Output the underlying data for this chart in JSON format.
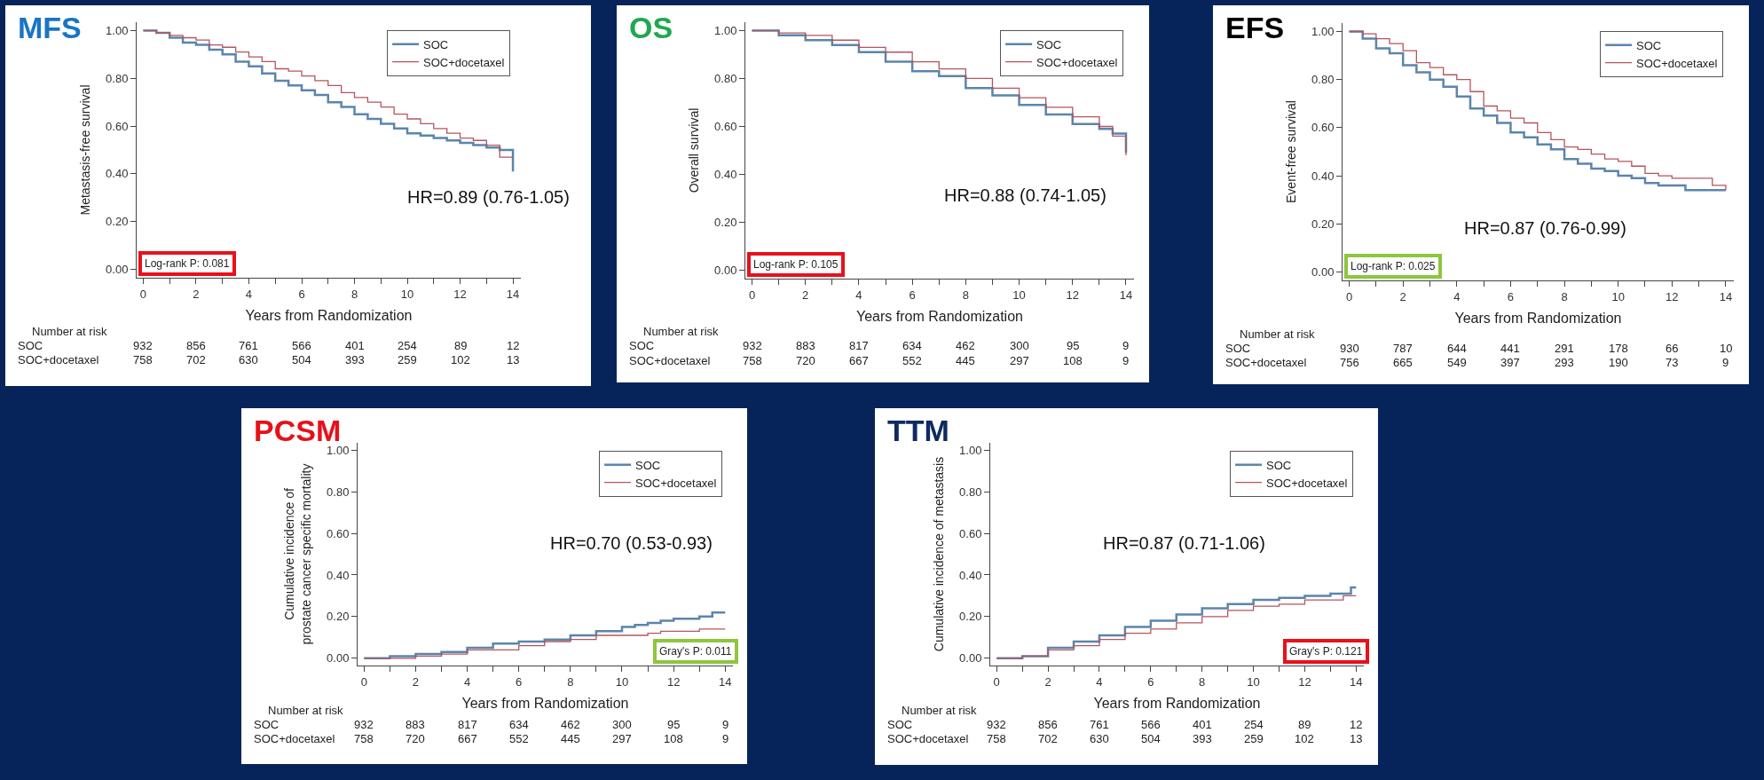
{
  "chart_data": [
    {
      "type": "step",
      "title": "MFS",
      "xlabel": "Years from Randomization",
      "ylabel": "Metastasis-free survival",
      "xlim": [
        -0.25,
        14.3
      ],
      "ylim": [
        -0.035,
        1.035
      ],
      "xticks": [
        0,
        {
          "value": 1,
          "label": null
        },
        2,
        {
          "value": 3,
          "label": null
        },
        4,
        {
          "value": 5,
          "label": null
        },
        6,
        {
          "value": 7,
          "label": null
        },
        8,
        {
          "value": 9,
          "label": null
        },
        10,
        {
          "value": 11,
          "label": null
        },
        12,
        {
          "value": 13,
          "label": null
        },
        14
      ],
      "yticks": [
        {
          "value": 0,
          "label": "0.00"
        },
        {
          "value": 0.2,
          "label": "0.20"
        },
        {
          "value": 0.4,
          "label": "0.40"
        },
        {
          "value": 0.6,
          "label": "0.60"
        },
        {
          "value": 0.8,
          "label": "0.80"
        },
        {
          "value": 1,
          "label": "1.00"
        }
      ],
      "legend": "top right",
      "series": [
        {
          "name": "SOC",
          "color": "#5b85ad",
          "x": [
            0,
            0.5,
            1,
            1.5,
            2,
            2.5,
            3,
            3.5,
            4,
            4.5,
            5,
            5.5,
            6,
            6.5,
            7,
            7.5,
            8,
            8.5,
            9,
            9.5,
            10,
            10.5,
            11,
            11.5,
            12,
            12.5,
            13,
            13.5,
            14
          ],
          "values": [
            1,
            0.99,
            0.97,
            0.95,
            0.94,
            0.92,
            0.9,
            0.87,
            0.85,
            0.82,
            0.79,
            0.77,
            0.75,
            0.73,
            0.7,
            0.68,
            0.65,
            0.63,
            0.61,
            0.59,
            0.57,
            0.56,
            0.55,
            0.54,
            0.53,
            0.52,
            0.51,
            0.5,
            0.41
          ]
        },
        {
          "name": "SOC+docetaxel",
          "color": "#b4555f",
          "x": [
            0,
            0.5,
            1,
            1.5,
            2,
            2.5,
            3,
            3.5,
            4,
            4.5,
            5,
            5.5,
            6,
            6.5,
            7,
            7.5,
            8,
            8.5,
            9,
            9.5,
            10,
            10.5,
            11,
            11.5,
            12,
            12.5,
            13,
            13.5,
            14
          ],
          "values": [
            1,
            0.99,
            0.98,
            0.97,
            0.96,
            0.94,
            0.93,
            0.91,
            0.89,
            0.87,
            0.84,
            0.83,
            0.81,
            0.79,
            0.77,
            0.74,
            0.72,
            0.7,
            0.68,
            0.65,
            0.63,
            0.61,
            0.59,
            0.57,
            0.55,
            0.54,
            0.52,
            0.47,
            0.47
          ]
        }
      ],
      "annotations": [
        "HR=0.89 (0.76-1.05)",
        "Log-rank P: 0.081",
        "Number at risk",
        "SOC",
        "932",
        "856",
        "761",
        "566",
        "401",
        "254",
        "89",
        "12",
        "SOC+docetaxel",
        "758",
        "702",
        "630",
        "504",
        "393",
        "259",
        "102",
        "13"
      ]
    },
    {
      "type": "step",
      "title": "OS",
      "xlabel": "Years from Randomization",
      "ylabel": "Overall survival",
      "xlim": [
        -0.25,
        14.3
      ],
      "ylim": [
        -0.035,
        1.035
      ],
      "xticks": [
        0,
        {
          "value": 1,
          "label": null
        },
        2,
        {
          "value": 3,
          "label": null
        },
        4,
        {
          "value": 5,
          "label": null
        },
        6,
        {
          "value": 7,
          "label": null
        },
        8,
        {
          "value": 9,
          "label": null
        },
        10,
        {
          "value": 11,
          "label": null
        },
        12,
        {
          "value": 13,
          "label": null
        },
        14
      ],
      "yticks": [
        {
          "value": 0,
          "label": "0.00"
        },
        {
          "value": 0.2,
          "label": "0.20"
        },
        {
          "value": 0.4,
          "label": "0.40"
        },
        {
          "value": 0.6,
          "label": "0.60"
        },
        {
          "value": 0.8,
          "label": "0.80"
        },
        {
          "value": 1,
          "label": "1.00"
        }
      ],
      "legend": "top right",
      "series": [
        {
          "name": "SOC",
          "color": "#5b85ad",
          "x": [
            0,
            1,
            2,
            3,
            4,
            5,
            6,
            7,
            8,
            9,
            10,
            11,
            12,
            13,
            13.5,
            14
          ],
          "values": [
            1,
            0.98,
            0.96,
            0.94,
            0.91,
            0.87,
            0.83,
            0.81,
            0.76,
            0.73,
            0.69,
            0.65,
            0.61,
            0.59,
            0.57,
            0.49
          ]
        },
        {
          "name": "SOC+docetaxel",
          "color": "#b4555f",
          "x": [
            0,
            1,
            2,
            3,
            4,
            5,
            6,
            7,
            8,
            9,
            10,
            11,
            12,
            13,
            13.5,
            14
          ],
          "values": [
            1,
            0.99,
            0.98,
            0.96,
            0.93,
            0.91,
            0.87,
            0.84,
            0.8,
            0.76,
            0.72,
            0.68,
            0.64,
            0.6,
            0.56,
            0.48
          ]
        }
      ],
      "annotations": [
        "HR=0.88 (0.74-1.05)",
        "Log-rank P: 0.105",
        "Number at risk",
        "SOC",
        "932",
        "883",
        "817",
        "634",
        "462",
        "300",
        "95",
        "9",
        "SOC+docetaxel",
        "758",
        "720",
        "667",
        "552",
        "445",
        "297",
        "108",
        "9"
      ]
    },
    {
      "type": "step",
      "title": "EFS",
      "xlabel": "Years from Randomization",
      "ylabel": "Event-free survival",
      "xlim": [
        -0.25,
        14.3
      ],
      "ylim": [
        -0.035,
        1.035
      ],
      "xticks": [
        0,
        {
          "value": 1,
          "label": null
        },
        2,
        {
          "value": 3,
          "label": null
        },
        4,
        {
          "value": 5,
          "label": null
        },
        6,
        {
          "value": 7,
          "label": null
        },
        8,
        {
          "value": 9,
          "label": null
        },
        10,
        {
          "value": 11,
          "label": null
        },
        12,
        {
          "value": 13,
          "label": null
        },
        14
      ],
      "yticks": [
        {
          "value": 0,
          "label": "0.00"
        },
        {
          "value": 0.2,
          "label": "0.20"
        },
        {
          "value": 0.4,
          "label": "0.40"
        },
        {
          "value": 0.6,
          "label": "0.60"
        },
        {
          "value": 0.8,
          "label": "0.80"
        },
        {
          "value": 1,
          "label": "1.00"
        }
      ],
      "legend": "top right",
      "series": [
        {
          "name": "SOC",
          "color": "#5b85ad",
          "x": [
            0,
            0.5,
            1,
            1.5,
            2,
            2.5,
            3,
            3.5,
            4,
            4.5,
            5,
            5.5,
            6,
            6.5,
            7,
            7.5,
            8,
            8.5,
            9,
            9.5,
            10,
            10.5,
            11,
            11.5,
            12,
            12.5,
            13,
            13.5,
            14
          ],
          "values": [
            1,
            0.97,
            0.93,
            0.91,
            0.86,
            0.83,
            0.8,
            0.77,
            0.73,
            0.68,
            0.65,
            0.62,
            0.58,
            0.56,
            0.53,
            0.51,
            0.47,
            0.45,
            0.43,
            0.42,
            0.4,
            0.39,
            0.37,
            0.36,
            0.36,
            0.34,
            0.34,
            0.34,
            0.34
          ]
        },
        {
          "name": "SOC+docetaxel",
          "color": "#b4555f",
          "x": [
            0,
            0.5,
            1,
            1.5,
            2,
            2.5,
            3,
            3.5,
            4,
            4.5,
            5,
            5.5,
            6,
            6.5,
            7,
            7.5,
            8,
            8.5,
            9,
            9.5,
            10,
            10.5,
            11,
            11.5,
            12,
            12.5,
            13,
            13.5,
            14
          ],
          "values": [
            1,
            0.99,
            0.97,
            0.95,
            0.92,
            0.87,
            0.85,
            0.82,
            0.8,
            0.75,
            0.69,
            0.67,
            0.64,
            0.62,
            0.58,
            0.55,
            0.52,
            0.51,
            0.49,
            0.47,
            0.46,
            0.44,
            0.41,
            0.4,
            0.39,
            0.39,
            0.39,
            0.36,
            0.34
          ]
        }
      ],
      "annotations": [
        "HR=0.87 (0.76-0.99)",
        "Log-rank P: 0.025",
        "Number at risk",
        "SOC",
        "930",
        "787",
        "644",
        "441",
        "291",
        "178",
        "66",
        "10",
        "SOC+docetaxel",
        "756",
        "665",
        "549",
        "397",
        "293",
        "190",
        "73",
        "9"
      ]
    },
    {
      "type": "step",
      "title": "PCSM",
      "xlabel": "Years from Randomization",
      "ylabel": "Cumulative incidence of\nprostate cancer specific mortality",
      "xlim": [
        -0.25,
        14.3
      ],
      "ylim": [
        -0.035,
        1.035
      ],
      "xticks": [
        0,
        {
          "value": 1,
          "label": null
        },
        2,
        {
          "value": 3,
          "label": null
        },
        4,
        {
          "value": 5,
          "label": null
        },
        6,
        {
          "value": 7,
          "label": null
        },
        8,
        {
          "value": 9,
          "label": null
        },
        10,
        {
          "value": 11,
          "label": null
        },
        12,
        {
          "value": 13,
          "label": null
        },
        14
      ],
      "yticks": [
        {
          "value": 0,
          "label": "0.00"
        },
        {
          "value": 0.2,
          "label": "0.20"
        },
        {
          "value": 0.4,
          "label": "0.40"
        },
        {
          "value": 0.6,
          "label": "0.60"
        },
        {
          "value": 0.8,
          "label": "0.80"
        },
        {
          "value": 1,
          "label": "1.00"
        }
      ],
      "legend": "top right",
      "series": [
        {
          "name": "SOC",
          "color": "#5b85ad",
          "x": [
            0,
            1,
            2,
            3,
            4,
            5,
            6,
            7,
            8,
            9,
            10,
            10.5,
            11,
            11.5,
            12,
            13,
            13.5,
            14
          ],
          "values": [
            0,
            0.01,
            0.02,
            0.03,
            0.05,
            0.07,
            0.08,
            0.09,
            0.11,
            0.13,
            0.15,
            0.16,
            0.17,
            0.18,
            0.19,
            0.2,
            0.22,
            0.22
          ]
        },
        {
          "name": "SOC+docetaxel",
          "color": "#b4555f",
          "x": [
            0,
            1,
            2,
            3,
            4,
            5,
            6,
            7,
            8,
            9,
            10,
            10.5,
            11,
            11.5,
            12,
            13,
            13.5,
            14
          ],
          "values": [
            0,
            0,
            0.01,
            0.02,
            0.04,
            0.04,
            0.06,
            0.08,
            0.09,
            0.11,
            0.11,
            0.11,
            0.12,
            0.13,
            0.13,
            0.14,
            0.14,
            0.14
          ]
        }
      ],
      "annotations": [
        "HR=0.70 (0.53-0.93)",
        "Gray's P: 0.011",
        "Number at risk",
        "SOC",
        "932",
        "883",
        "817",
        "634",
        "462",
        "300",
        "95",
        "9",
        "SOC+docetaxel",
        "758",
        "720",
        "667",
        "552",
        "445",
        "297",
        "108",
        "9"
      ]
    },
    {
      "type": "step",
      "title": "TTM",
      "xlabel": "Years from Randomization",
      "ylabel": "Cumulative incidence of metastasis",
      "xlim": [
        -0.25,
        14.3
      ],
      "ylim": [
        -0.035,
        1.035
      ],
      "xticks": [
        0,
        {
          "value": 1,
          "label": null
        },
        2,
        {
          "value": 3,
          "label": null
        },
        4,
        {
          "value": 5,
          "label": null
        },
        6,
        {
          "value": 7,
          "label": null
        },
        8,
        {
          "value": 9,
          "label": null
        },
        10,
        {
          "value": 11,
          "label": null
        },
        12,
        {
          "value": 13,
          "label": null
        },
        14
      ],
      "yticks": [
        {
          "value": 0,
          "label": "0.00"
        },
        {
          "value": 0.2,
          "label": "0.20"
        },
        {
          "value": 0.4,
          "label": "0.40"
        },
        {
          "value": 0.6,
          "label": "0.60"
        },
        {
          "value": 0.8,
          "label": "0.80"
        },
        {
          "value": 1,
          "label": "1.00"
        }
      ],
      "legend": "top right",
      "series": [
        {
          "name": "SOC",
          "color": "#5b85ad",
          "x": [
            0,
            1,
            2,
            3,
            4,
            5,
            6,
            7,
            8,
            9,
            10,
            11,
            12,
            13,
            13.8,
            14
          ],
          "values": [
            0,
            0.01,
            0.05,
            0.08,
            0.11,
            0.15,
            0.18,
            0.21,
            0.24,
            0.26,
            0.28,
            0.29,
            0.3,
            0.31,
            0.34,
            0.34
          ]
        },
        {
          "name": "SOC+docetaxel",
          "color": "#b4555f",
          "x": [
            0,
            1,
            2,
            3,
            4,
            5,
            6,
            7,
            8,
            9,
            10,
            11,
            12,
            13,
            13.5,
            14
          ],
          "values": [
            0,
            0.01,
            0.04,
            0.06,
            0.09,
            0.12,
            0.14,
            0.17,
            0.2,
            0.23,
            0.25,
            0.26,
            0.28,
            0.28,
            0.3,
            0.3
          ]
        }
      ],
      "annotations": [
        "HR=0.87 (0.71-1.06)",
        "Gray's P: 0.121",
        "Number at risk",
        "SOC",
        "932",
        "856",
        "761",
        "566",
        "401",
        "254",
        "89",
        "12",
        "SOC+docetaxel",
        "758",
        "702",
        "630",
        "504",
        "393",
        "259",
        "102",
        "13"
      ]
    }
  ]
}
